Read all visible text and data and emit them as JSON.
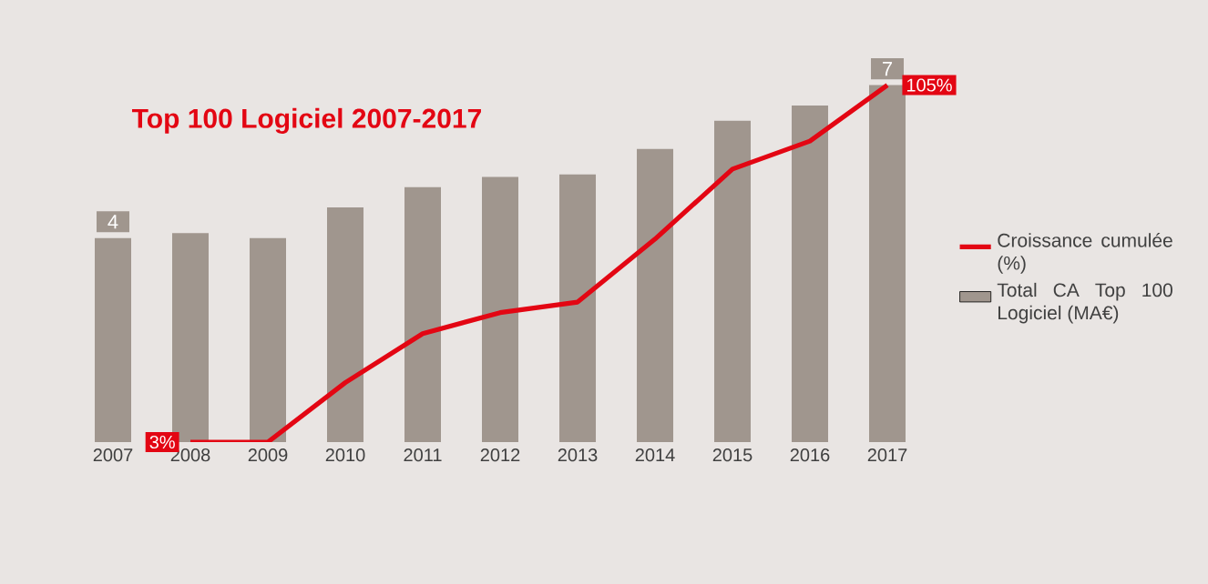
{
  "chart_data": {
    "type": "bar",
    "title": "Top 100 Logiciel 2007-2017",
    "categories": [
      "2007",
      "2008",
      "2009",
      "2010",
      "2011",
      "2012",
      "2013",
      "2014",
      "2015",
      "2016",
      "2017"
    ],
    "series": [
      {
        "type": "line",
        "axis": "y2",
        "name": "Croissance cumulée (%)",
        "color": "#e30613",
        "values": [
          null,
          3,
          3,
          20,
          34,
          40,
          43,
          61,
          81,
          89,
          105
        ],
        "value_labels": [
          null,
          "3%",
          null,
          null,
          null,
          null,
          null,
          null,
          null,
          null,
          "105%"
        ]
      },
      {
        "name": "Total CA Top 100 Logiciel (MA€)",
        "color": "#a0968e",
        "values": [
          4,
          4.1,
          4,
          4.6,
          5,
          5.2,
          5.25,
          5.75,
          6.3,
          6.6,
          7
        ],
        "value_labels": [
          "4",
          null,
          null,
          null,
          null,
          null,
          null,
          null,
          null,
          null,
          "7"
        ]
      }
    ],
    "tick_labels": "x",
    "legend": "right"
  }
}
